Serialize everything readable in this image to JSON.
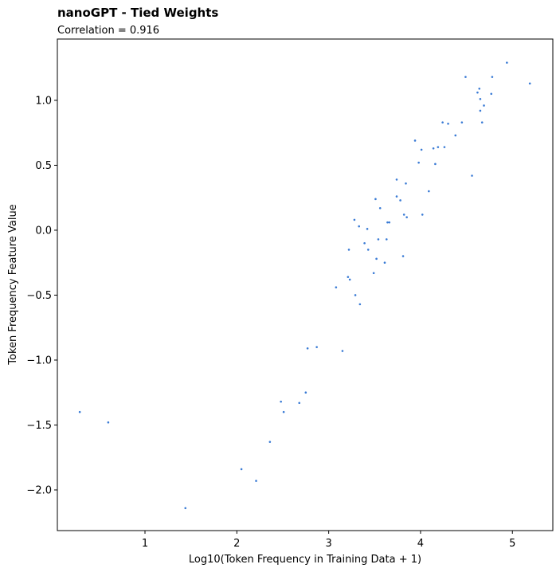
{
  "chart_data": {
    "type": "scatter",
    "title": "nanoGPT - Tied Weights",
    "subtitle": "Correlation = 0.916",
    "x_label": "Log10(Token Frequency in Training Data + 1)",
    "y_label": "Token Frequency Feature Value",
    "color": "#3a7bd5",
    "xlim": [
      0.046,
      5.44
    ],
    "xticks": [
      1,
      2,
      3,
      4,
      5
    ],
    "ylim": [
      -2.313,
      1.472
    ],
    "yticks": [
      {
        "value": 1,
        "label": "1.0"
      },
      {
        "value": 0.5,
        "label": "0.5"
      },
      {
        "value": 0,
        "label": "0.0"
      },
      {
        "value": -0.5,
        "label": "−0.5"
      },
      {
        "value": -1,
        "label": "−1.0"
      },
      {
        "value": -1.5,
        "label": "−1.5"
      },
      {
        "value": -2,
        "label": "−2.0"
      }
    ],
    "x": [
      0.29,
      0.6,
      1.44,
      2.05,
      2.21,
      2.36,
      2.48,
      2.51,
      2.68,
      2.75,
      2.77,
      2.87,
      3.15,
      3.08,
      3.22,
      3.21,
      3.23,
      3.28,
      3.29,
      3.33,
      3.34,
      3.39,
      3.42,
      3.43,
      3.49,
      3.51,
      3.52,
      3.54,
      3.56,
      3.61,
      3.63,
      3.64,
      3.66,
      3.74,
      3.74,
      3.78,
      3.81,
      3.82,
      3.84,
      3.85,
      3.94,
      3.98,
      4.01,
      4.02,
      4.09,
      4.14,
      4.16,
      4.19,
      4.24,
      4.26,
      4.3,
      4.38,
      4.45,
      4.49,
      4.56,
      4.62,
      4.64,
      4.65,
      4.65,
      4.67,
      4.69,
      4.77,
      4.78,
      4.94,
      5.19
    ],
    "values": [
      -1.4,
      -1.48,
      -2.14,
      -1.84,
      -1.93,
      -1.63,
      -1.32,
      -1.4,
      -1.33,
      -1.25,
      -0.91,
      -0.9,
      -0.93,
      -0.44,
      -0.15,
      -0.36,
      -0.38,
      0.08,
      -0.5,
      0.03,
      -0.57,
      -0.1,
      0.01,
      -0.15,
      -0.33,
      0.24,
      -0.22,
      -0.07,
      0.17,
      -0.25,
      -0.07,
      0.06,
      0.06,
      0.39,
      0.26,
      0.23,
      -0.2,
      0.12,
      0.36,
      0.1,
      0.69,
      0.52,
      0.62,
      0.12,
      0.3,
      0.63,
      0.51,
      0.64,
      0.83,
      0.64,
      0.82,
      0.73,
      0.83,
      1.18,
      0.42,
      1.06,
      1.09,
      1.01,
      0.92,
      0.83,
      0.96,
      1.05,
      1.18,
      1.29,
      1.13
    ]
  }
}
